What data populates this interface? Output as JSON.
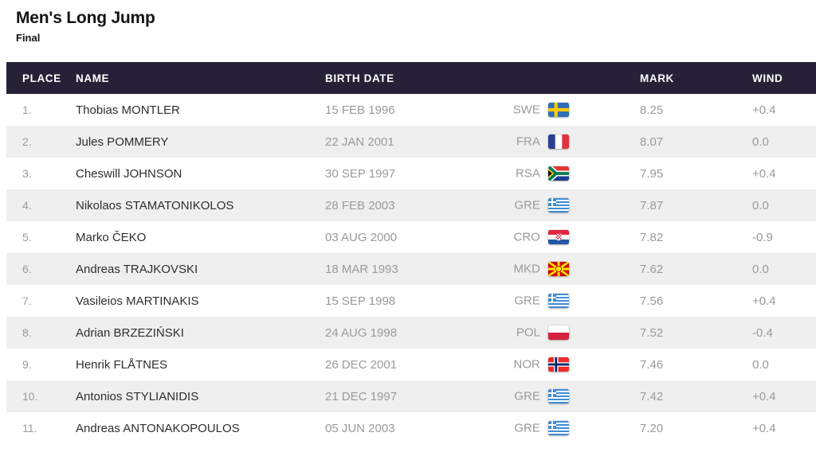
{
  "page": {
    "title": "Men's Long Jump",
    "subtitle": "Final"
  },
  "table": {
    "columns": {
      "place": "PLACE",
      "name": "NAME",
      "birth_date": "BIRTH DATE",
      "country": "",
      "mark": "MARK",
      "wind": "WIND"
    },
    "rows": [
      {
        "place": "1.",
        "name": "Thobias MONTLER",
        "birth_date": "15 FEB 1996",
        "country": "SWE",
        "flag_icon": "flag-swe-icon",
        "mark": "8.25",
        "wind": "+0.4"
      },
      {
        "place": "2.",
        "name": "Jules POMMERY",
        "birth_date": "22 JAN 2001",
        "country": "FRA",
        "flag_icon": "flag-fra-icon",
        "mark": "8.07",
        "wind": "0.0"
      },
      {
        "place": "3.",
        "name": "Cheswill JOHNSON",
        "birth_date": "30 SEP 1997",
        "country": "RSA",
        "flag_icon": "flag-rsa-icon",
        "mark": "7.95",
        "wind": "+0.4"
      },
      {
        "place": "4.",
        "name": "Nikolaos STAMATONIKOLOS",
        "birth_date": "28 FEB 2003",
        "country": "GRE",
        "flag_icon": "flag-gre-icon",
        "mark": "7.87",
        "wind": "0.0"
      },
      {
        "place": "5.",
        "name": "Marko ČEKO",
        "birth_date": "03 AUG 2000",
        "country": "CRO",
        "flag_icon": "flag-cro-icon",
        "mark": "7.82",
        "wind": "-0.9"
      },
      {
        "place": "6.",
        "name": "Andreas TRAJKOVSKI",
        "birth_date": "18 MAR 1993",
        "country": "MKD",
        "flag_icon": "flag-mkd-icon",
        "mark": "7.62",
        "wind": "0.0"
      },
      {
        "place": "7.",
        "name": "Vasileios MARTINAKIS",
        "birth_date": "15 SEP 1998",
        "country": "GRE",
        "flag_icon": "flag-gre-icon",
        "mark": "7.56",
        "wind": "+0.4"
      },
      {
        "place": "8.",
        "name": "Adrian BRZEZIŃSKI",
        "birth_date": "24 AUG 1998",
        "country": "POL",
        "flag_icon": "flag-pol-icon",
        "mark": "7.52",
        "wind": "-0.4"
      },
      {
        "place": "9.",
        "name": "Henrik FLÅTNES",
        "birth_date": "26 DEC 2001",
        "country": "NOR",
        "flag_icon": "flag-nor-icon",
        "mark": "7.46",
        "wind": "0.0"
      },
      {
        "place": "10.",
        "name": "Antonios STYLIANIDIS",
        "birth_date": "21 DEC 1997",
        "country": "GRE",
        "flag_icon": "flag-gre-icon",
        "mark": "7.42",
        "wind": "+0.4"
      },
      {
        "place": "11.",
        "name": "Andreas ANTONAKOPOULOS",
        "birth_date": "05 JUN 2003",
        "country": "GRE",
        "flag_icon": "flag-gre-icon",
        "mark": "7.20",
        "wind": "+0.4"
      }
    ]
  },
  "colors": {
    "header_bg": "#272138",
    "header_text": "#ffffff",
    "row_alt_bg": "#efefef",
    "muted_text": "#9a9a9a",
    "name_text": "#2e2e2e",
    "title_text": "#141414"
  }
}
